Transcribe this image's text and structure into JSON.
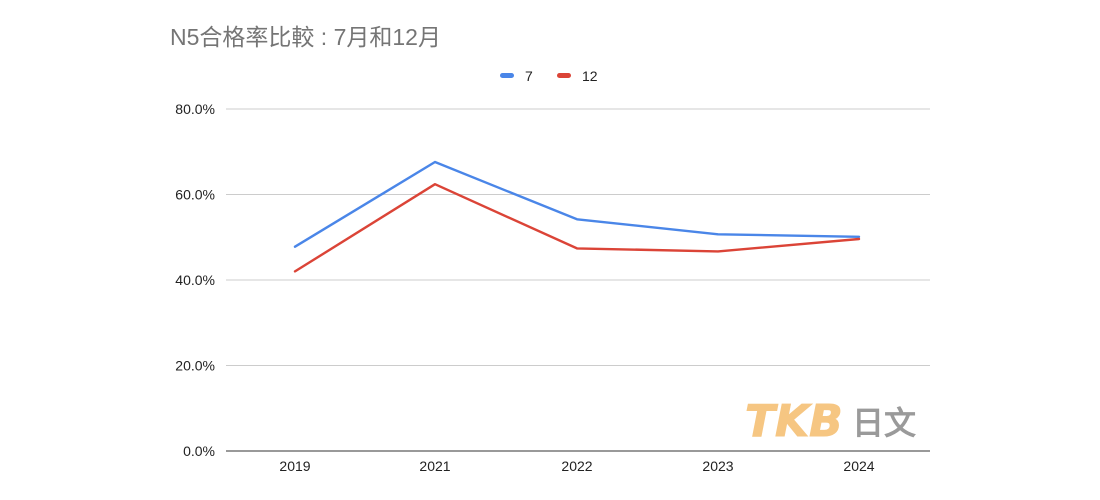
{
  "chart_data": {
    "type": "line",
    "title": "N5合格率比較 : 7月和12月",
    "categories": [
      "2019",
      "2021",
      "2022",
      "2023",
      "2024"
    ],
    "series": [
      {
        "name": "7",
        "color": "#4a86e8",
        "values": [
          47.8,
          67.6,
          54.2,
          50.7,
          50.1
        ]
      },
      {
        "name": "12",
        "color": "#db4437",
        "values": [
          42.0,
          62.4,
          47.4,
          46.7,
          49.6
        ]
      }
    ],
    "yticks": [
      "0.0%",
      "20.0%",
      "40.0%",
      "60.0%",
      "80.0%"
    ],
    "ylim": [
      0,
      80
    ],
    "grid": true,
    "legend_position": "top-center"
  },
  "watermark": {
    "latin": "TKB",
    "cjk": "日文"
  }
}
